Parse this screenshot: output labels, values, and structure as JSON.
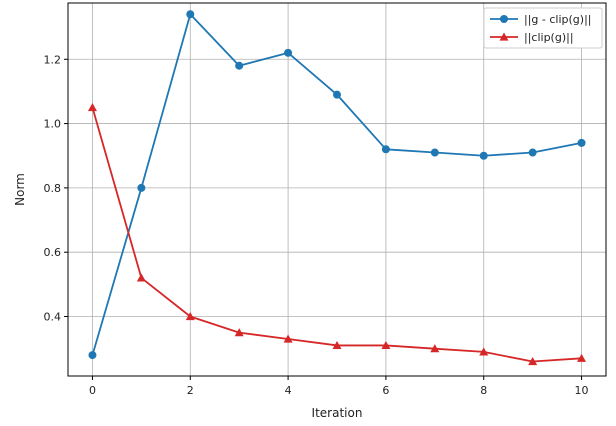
{
  "chart_data": {
    "type": "line",
    "title": "",
    "xlabel": "Iteration",
    "ylabel": "Norm",
    "xlim": [
      -0.5,
      10.5
    ],
    "ylim": [
      0.215,
      1.375
    ],
    "x": [
      0,
      1,
      2,
      3,
      4,
      5,
      6,
      7,
      8,
      9,
      10
    ],
    "xticks": [
      0,
      2,
      4,
      6,
      8,
      10
    ],
    "yticks": [
      0.4,
      0.6,
      0.8,
      1.0,
      1.2
    ],
    "ytick_labels": [
      "0.4",
      "0.6",
      "0.8",
      "1.0",
      "1.2"
    ],
    "grid": true,
    "legend_position": "top-right",
    "series": [
      {
        "name": "||g - clip(g)||",
        "color": "#1f77b4",
        "marker": "circle",
        "values": [
          0.28,
          0.8,
          1.34,
          1.18,
          1.22,
          1.09,
          0.92,
          0.91,
          0.9,
          0.91,
          0.94
        ]
      },
      {
        "name": "||clip(g)||",
        "color": "#d62728",
        "marker": "triangle",
        "values": [
          1.05,
          0.52,
          0.4,
          0.35,
          0.33,
          0.31,
          0.31,
          0.3,
          0.29,
          0.26,
          0.27
        ]
      }
    ]
  }
}
